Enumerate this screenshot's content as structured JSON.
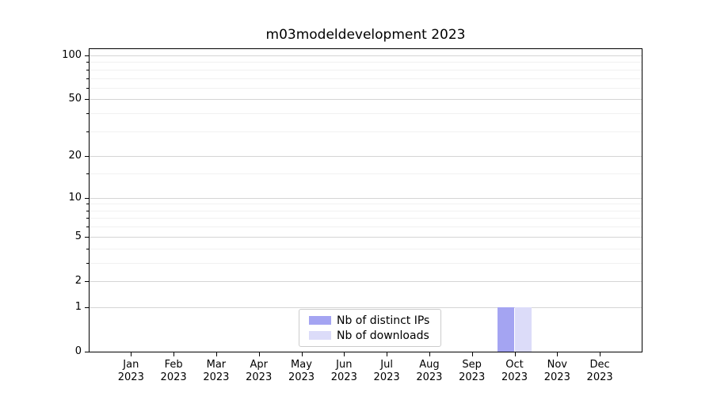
{
  "chart_data": {
    "type": "bar",
    "title": "m03modeldevelopment 2023",
    "categories": [
      "Jan",
      "Feb",
      "Mar",
      "Apr",
      "May",
      "Jun",
      "Jul",
      "Aug",
      "Sep",
      "Oct",
      "Nov",
      "Dec"
    ],
    "x_year": "2023",
    "series": [
      {
        "name": "Nb of distinct IPs",
        "color": "#a4a4f2",
        "values": [
          0,
          0,
          0,
          0,
          0,
          0,
          0,
          0,
          0,
          1,
          0,
          0
        ]
      },
      {
        "name": "Nb of downloads",
        "color": "#dcdcf9",
        "values": [
          0,
          0,
          0,
          0,
          0,
          0,
          0,
          0,
          0,
          1,
          0,
          0
        ]
      }
    ],
    "yscale": "log1p",
    "yticks": [
      0,
      1,
      2,
      5,
      10,
      20,
      50,
      100
    ],
    "y_minor_ticks": [
      3,
      4,
      6,
      7,
      8,
      9,
      15,
      30,
      40,
      60,
      70,
      80,
      90
    ],
    "ylim": [
      0,
      110.5
    ],
    "xlabel": "",
    "ylabel": "",
    "bar_width_fraction": 0.4,
    "grid": "horizontal",
    "legend": {
      "position": "lower center"
    },
    "colors": {
      "major_grid": "#d5d5d5",
      "minor_grid": "#f1f1f1",
      "axis": "#000000",
      "background": "#ffffff",
      "legend_border": "#cccccc"
    }
  }
}
